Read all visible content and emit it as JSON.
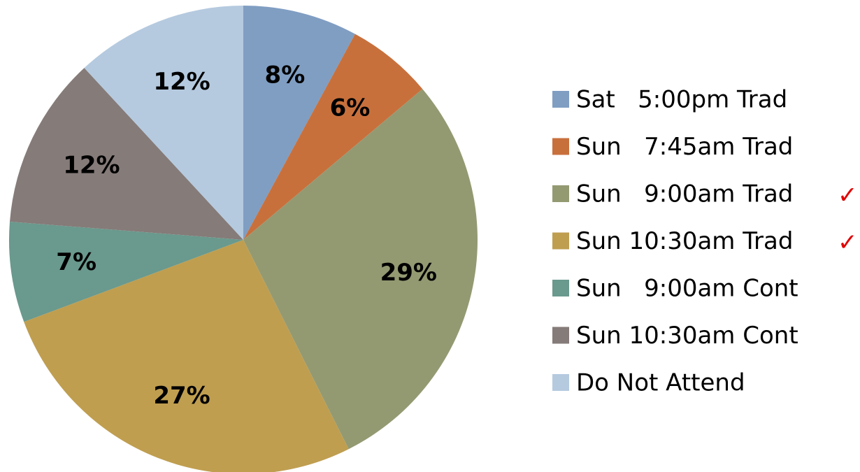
{
  "chart_data": {
    "type": "pie",
    "categories": [
      "Sat   5:00pm Trad",
      "Sun   7:45am Trad",
      "Sun   9:00am Trad",
      "Sun 10:30am Trad",
      "Sun   9:00am Cont",
      "Sun 10:30am Cont",
      "Do Not Attend"
    ],
    "values": [
      8,
      6,
      29,
      27,
      7,
      12,
      12
    ],
    "value_labels": [
      "8%",
      "6%",
      "29%",
      "27%",
      "7%",
      "12%",
      "12%"
    ],
    "colors": [
      "#809ec2",
      "#c8703c",
      "#939a72",
      "#bf9e50",
      "#6a998d",
      "#857b79",
      "#b5cadf"
    ],
    "legend_marks": [
      null,
      null,
      "✓",
      "✓",
      null,
      null,
      null
    ],
    "legend": "right"
  }
}
